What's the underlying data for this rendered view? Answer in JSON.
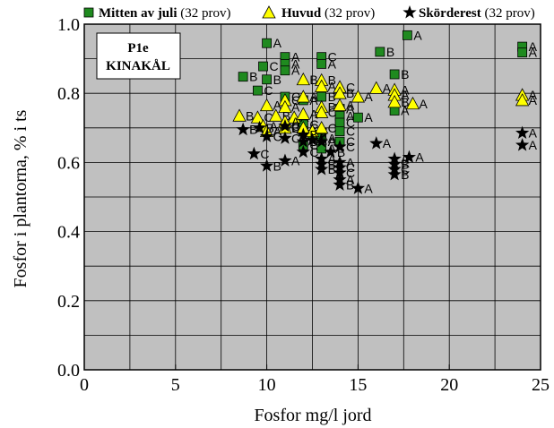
{
  "chart_data": {
    "type": "scatter",
    "xlabel": "Fosfor mg/l jord",
    "ylabel": "Fosfor i plantorna, % i ts",
    "xlim": [
      0,
      25
    ],
    "ylim": [
      0.0,
      1.0
    ],
    "x_ticks": [
      "0",
      "5",
      "10",
      "15",
      "20",
      "25"
    ],
    "y_ticks": [
      "0.0",
      "0.2",
      "0.4",
      "0.6",
      "0.8",
      "1.0"
    ],
    "grid": true,
    "plot_background": "#c0c0c0",
    "panel_label": [
      "P1e",
      "KINAKÅL"
    ],
    "legend_position": "top",
    "series": [
      {
        "name": "Mitten av juli",
        "count": "(32 prov)",
        "marker": "square",
        "color": "#1f8a1f",
        "points": [
          {
            "x": 10.0,
            "y": 0.945,
            "label": "A"
          },
          {
            "x": 11.0,
            "y": 0.905,
            "label": "A"
          },
          {
            "x": 11.0,
            "y": 0.885,
            "label": "A"
          },
          {
            "x": 11.0,
            "y": 0.866,
            "label": "A"
          },
          {
            "x": 13.0,
            "y": 0.905,
            "label": "C"
          },
          {
            "x": 13.0,
            "y": 0.885,
            "label": "A"
          },
          {
            "x": 9.8,
            "y": 0.878,
            "label": "C"
          },
          {
            "x": 8.7,
            "y": 0.848,
            "label": "B"
          },
          {
            "x": 10.0,
            "y": 0.84,
            "label": "B"
          },
          {
            "x": 9.5,
            "y": 0.808,
            "label": "C"
          },
          {
            "x": 16.2,
            "y": 0.92,
            "label": "B"
          },
          {
            "x": 17.7,
            "y": 0.968,
            "label": "A"
          },
          {
            "x": 17.0,
            "y": 0.855,
            "label": "B"
          },
          {
            "x": 24.0,
            "y": 0.935,
            "label": "A"
          },
          {
            "x": 24.0,
            "y": 0.918,
            "label": "A"
          },
          {
            "x": 11.0,
            "y": 0.79,
            "label": "C"
          },
          {
            "x": 12.0,
            "y": 0.78,
            "label": "A"
          },
          {
            "x": 13.0,
            "y": 0.79,
            "label": "B"
          },
          {
            "x": 14.0,
            "y": 0.755,
            "label": "A"
          },
          {
            "x": 14.0,
            "y": 0.735,
            "label": "A"
          },
          {
            "x": 14.0,
            "y": 0.715,
            "label": "C"
          },
          {
            "x": 15.0,
            "y": 0.73,
            "label": "A"
          },
          {
            "x": 17.0,
            "y": 0.75,
            "label": "A"
          },
          {
            "x": 12.0,
            "y": 0.71,
            "label": "C"
          },
          {
            "x": 12.0,
            "y": 0.69,
            "label": "A"
          },
          {
            "x": 12.0,
            "y": 0.65,
            "label": "C"
          },
          {
            "x": 13.0,
            "y": 0.67,
            "label": "A"
          },
          {
            "x": 13.0,
            "y": 0.64,
            "label": "A"
          },
          {
            "x": 14.0,
            "y": 0.66,
            "label": "C"
          },
          {
            "x": 14.0,
            "y": 0.69,
            "label": "C"
          },
          {
            "x": 11.0,
            "y": 0.7,
            "label": "B"
          },
          {
            "x": 12.5,
            "y": 0.68,
            "label": "A"
          }
        ]
      },
      {
        "name": "Huvud",
        "count": "(32 prov)",
        "marker": "triangle",
        "color": "#ffff00",
        "points": [
          {
            "x": 12.0,
            "y": 0.84,
            "label": "B"
          },
          {
            "x": 13.0,
            "y": 0.838,
            "label": "B"
          },
          {
            "x": 13.0,
            "y": 0.82,
            "label": "A"
          },
          {
            "x": 14.0,
            "y": 0.818,
            "label": "C"
          },
          {
            "x": 14.0,
            "y": 0.8,
            "label": "B"
          },
          {
            "x": 15.0,
            "y": 0.79,
            "label": "A"
          },
          {
            "x": 16.0,
            "y": 0.815,
            "label": "A"
          },
          {
            "x": 17.0,
            "y": 0.81,
            "label": "A"
          },
          {
            "x": 17.0,
            "y": 0.795,
            "label": "A"
          },
          {
            "x": 17.0,
            "y": 0.775,
            "label": "B"
          },
          {
            "x": 18.0,
            "y": 0.77,
            "label": "A"
          },
          {
            "x": 24.0,
            "y": 0.795,
            "label": "A"
          },
          {
            "x": 24.0,
            "y": 0.78,
            "label": "A"
          },
          {
            "x": 10.0,
            "y": 0.765,
            "label": "A"
          },
          {
            "x": 11.0,
            "y": 0.78,
            "label": "C"
          },
          {
            "x": 11.0,
            "y": 0.76,
            "label": "A"
          },
          {
            "x": 12.0,
            "y": 0.79,
            "label": "A"
          },
          {
            "x": 13.0,
            "y": 0.76,
            "label": "B"
          },
          {
            "x": 13.0,
            "y": 0.745,
            "label": "C"
          },
          {
            "x": 14.0,
            "y": 0.765,
            "label": "A"
          },
          {
            "x": 8.5,
            "y": 0.735,
            "label": "B"
          },
          {
            "x": 9.5,
            "y": 0.73,
            "label": "C"
          },
          {
            "x": 10.5,
            "y": 0.735,
            "label": "B"
          },
          {
            "x": 11.5,
            "y": 0.73,
            "label": "A"
          },
          {
            "x": 11.0,
            "y": 0.718,
            "label": "A"
          },
          {
            "x": 9.8,
            "y": 0.705,
            "label": "A"
          },
          {
            "x": 10.0,
            "y": 0.69,
            "label": "A"
          },
          {
            "x": 11.0,
            "y": 0.7,
            "label": "C"
          },
          {
            "x": 12.0,
            "y": 0.7,
            "label": "C"
          },
          {
            "x": 12.5,
            "y": 0.69,
            "label": "C"
          },
          {
            "x": 13.0,
            "y": 0.7,
            "label": "C"
          },
          {
            "x": 12.0,
            "y": 0.74,
            "label": "A"
          }
        ]
      },
      {
        "name": "Skörderest",
        "count": "(32 prov)",
        "marker": "star",
        "color": "#000000",
        "points": [
          {
            "x": 8.7,
            "y": 0.695,
            "label": "B"
          },
          {
            "x": 9.6,
            "y": 0.7,
            "label": "B"
          },
          {
            "x": 10.0,
            "y": 0.675,
            "label": "C"
          },
          {
            "x": 11.0,
            "y": 0.67,
            "label": "C"
          },
          {
            "x": 11.0,
            "y": 0.705,
            "label": "C"
          },
          {
            "x": 12.0,
            "y": 0.68,
            "label": "B"
          },
          {
            "x": 12.5,
            "y": 0.665,
            "label": "A"
          },
          {
            "x": 13.0,
            "y": 0.66,
            "label": "A"
          },
          {
            "x": 14.0,
            "y": 0.645,
            "label": "C"
          },
          {
            "x": 12.0,
            "y": 0.63,
            "label": "C"
          },
          {
            "x": 9.3,
            "y": 0.625,
            "label": "C"
          },
          {
            "x": 10.0,
            "y": 0.59,
            "label": "B"
          },
          {
            "x": 11.0,
            "y": 0.605,
            "label": "A"
          },
          {
            "x": 13.0,
            "y": 0.61,
            "label": "A"
          },
          {
            "x": 13.0,
            "y": 0.595,
            "label": "B"
          },
          {
            "x": 13.0,
            "y": 0.58,
            "label": "B"
          },
          {
            "x": 14.0,
            "y": 0.6,
            "label": "A"
          },
          {
            "x": 14.0,
            "y": 0.585,
            "label": "C"
          },
          {
            "x": 14.0,
            "y": 0.57,
            "label": "C"
          },
          {
            "x": 14.0,
            "y": 0.55,
            "label": "A"
          },
          {
            "x": 14.0,
            "y": 0.535,
            "label": "B"
          },
          {
            "x": 15.0,
            "y": 0.525,
            "label": "A"
          },
          {
            "x": 16.0,
            "y": 0.655,
            "label": "A"
          },
          {
            "x": 17.0,
            "y": 0.61,
            "label": "A"
          },
          {
            "x": 17.0,
            "y": 0.595,
            "label": "B"
          },
          {
            "x": 17.0,
            "y": 0.58,
            "label": "C"
          },
          {
            "x": 17.0,
            "y": 0.565,
            "label": "B"
          },
          {
            "x": 17.8,
            "y": 0.615,
            "label": "A"
          },
          {
            "x": 24.0,
            "y": 0.685,
            "label": "A"
          },
          {
            "x": 24.0,
            "y": 0.65,
            "label": "A"
          },
          {
            "x": 13.5,
            "y": 0.63,
            "label": "B"
          },
          {
            "x": 12.0,
            "y": 0.66,
            "label": "B"
          }
        ]
      }
    ]
  }
}
